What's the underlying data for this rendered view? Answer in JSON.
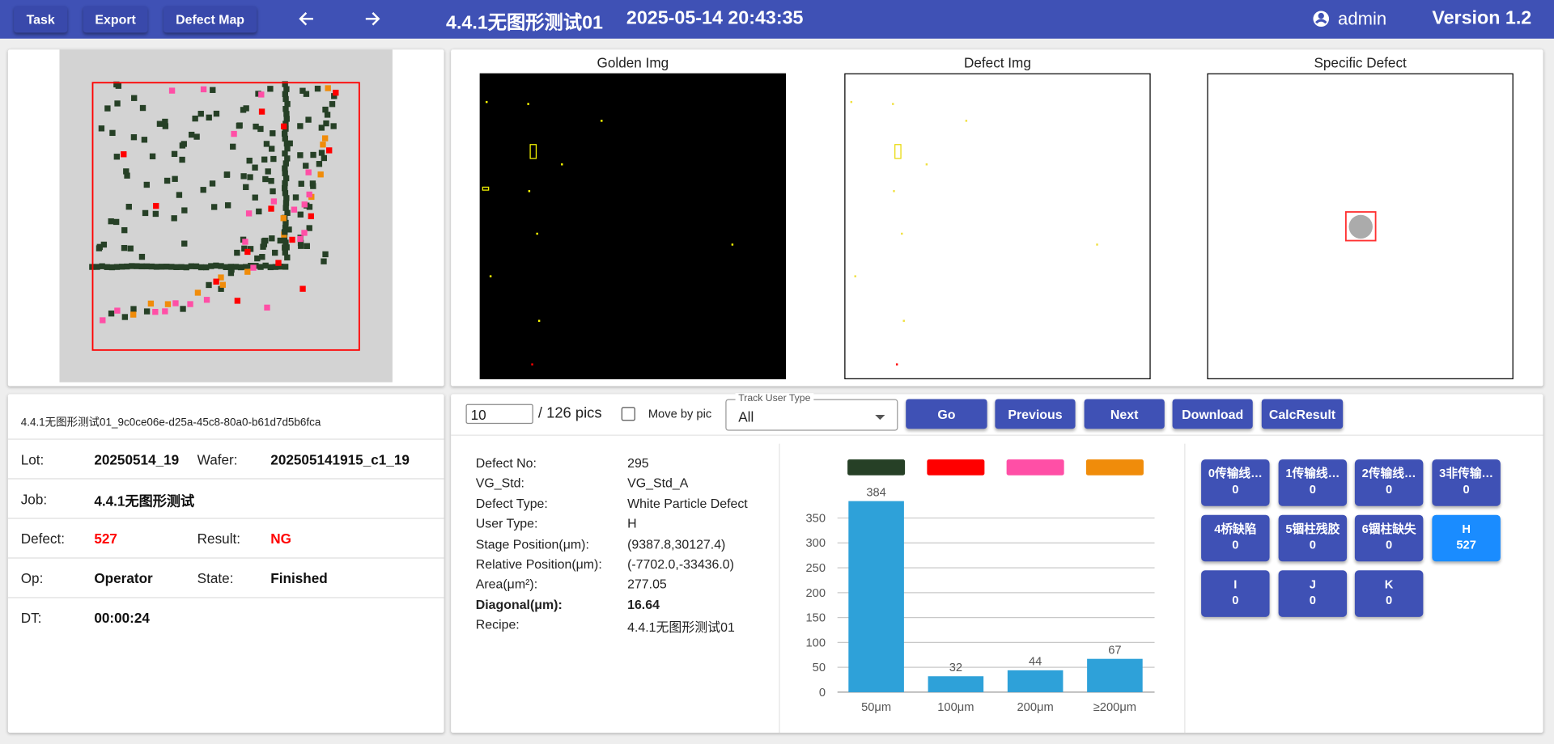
{
  "header": {
    "buttons": [
      "Task",
      "Export",
      "Defect Map"
    ],
    "title": "4.4.1无图形测试01",
    "datetime": "2025-05-14 20:43:35",
    "user": "admin",
    "version": "Version 1.2"
  },
  "images": {
    "titles": [
      "Golden Img",
      "Defect Img",
      "Specific Defect"
    ]
  },
  "controls": {
    "page": "10",
    "total": "/ 126 pics",
    "move_by_pic": "Move by pic",
    "track_label": "Track User Type",
    "track_value": "All",
    "buttons": [
      "Go",
      "Previous",
      "Next",
      "Download",
      "CalcResult"
    ]
  },
  "info": {
    "id": "4.4.1无图形测试01_9c0ce06e-d25a-45c8-80a0-b61d7d5b6fca",
    "rows": [
      [
        {
          "label": "Lot:",
          "value": "20250514_19"
        },
        {
          "label": "Wafer:",
          "value": "202505141915_c1_19"
        }
      ],
      [
        {
          "label": "Job:",
          "value": "4.4.1无图形测试"
        }
      ],
      [
        {
          "label": "Defect:",
          "value": "527"
        },
        {
          "label": "Result:",
          "value": "NG"
        }
      ],
      [
        {
          "label": "Op:",
          "value": "Operator"
        },
        {
          "label": "State:",
          "value": "Finished"
        }
      ],
      [
        {
          "label": "DT:",
          "value": "00:00:24"
        }
      ]
    ]
  },
  "details": [
    {
      "label": "Defect No:",
      "value": "295"
    },
    {
      "label": "VG_Std:",
      "value": "VG_Std_A"
    },
    {
      "label": "Defect Type:",
      "value": "White Particle Defect"
    },
    {
      "label": "User Type:",
      "value": "H"
    },
    {
      "label": "Stage Position(μm):",
      "value": "(9387.8,30127.4)"
    },
    {
      "label": "Relative Position(μm):",
      "value": "(-7702.0,-33436.0)"
    },
    {
      "label": "Area(μm²):",
      "value": "277.05"
    },
    {
      "label": "Diagonal(μm):",
      "value": "16.64"
    },
    {
      "label": "Recipe:",
      "value": "4.4.1无图形测试01"
    }
  ],
  "chart_data": {
    "type": "bar",
    "categories": [
      "50μm",
      "100μm",
      "200μm",
      "≥200μm"
    ],
    "values": [
      384,
      32,
      44,
      67
    ],
    "color": "#2ea1d9",
    "legend_colors": [
      "#264026",
      "#ff0000",
      "#ff4fa6",
      "#f08c0a"
    ],
    "ylim": [
      0,
      400
    ],
    "yticks": [
      0,
      50,
      100,
      150,
      200,
      250,
      300,
      350
    ],
    "grid": true
  },
  "class_buttons": [
    {
      "name": "0传输线…",
      "count": 0
    },
    {
      "name": "1传输线…",
      "count": 0
    },
    {
      "name": "2传输线…",
      "count": 0
    },
    {
      "name": "3非传输…",
      "count": 0
    },
    {
      "name": "4桥缺陷",
      "count": 0
    },
    {
      "name": "5锢柱残胶",
      "count": 0
    },
    {
      "name": "6锢柱缺失",
      "count": 0
    },
    {
      "name": "H",
      "count": 527
    },
    {
      "name": "I",
      "count": 0
    },
    {
      "name": "J",
      "count": 0
    },
    {
      "name": "K",
      "count": 0
    }
  ]
}
